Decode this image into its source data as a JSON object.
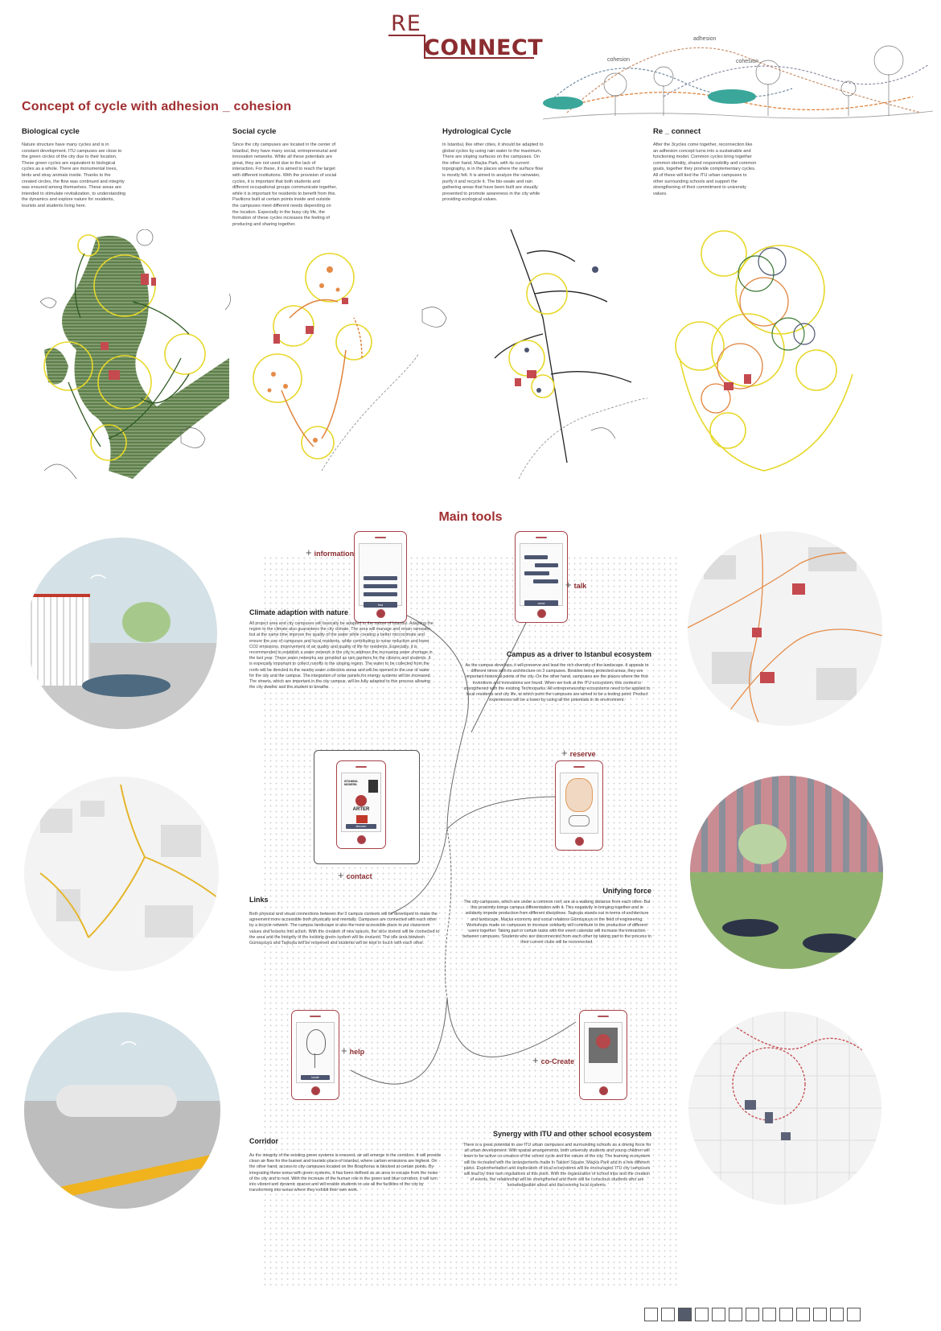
{
  "header": {
    "logo_re": "RE",
    "logo_connect": "CONNECT",
    "diagram_labels": {
      "adhesion": "adhesion",
      "cohesion_left": "cohesion",
      "cohesion_right": "cohesion"
    }
  },
  "concept": {
    "title": "Concept of cycle with adhesion _ cohesion",
    "columns": [
      {
        "title": "Biological cycle",
        "text": "Nature structure have many cycles and is in constant development. ITU campuses are close to the green circles of the city due to their location. These green cycles are equivalent to biological cycles as a whole. There are monumental trees, birds and stray animals inside. Thanks to the created circles, the flow was continued and integrity was ensured among themselves. These areas are intended to stimulate revitalization, to understanding the dynamics and explore nature for residents, tourists and students living here."
      },
      {
        "title": "Social cycle",
        "text": "Since the city campuses are located in the center of Istanbul, they have many social, entrepreneurial and innovation networks. While all these potentials are great, they are not used due to the lack of interaction. For these, it is aimed to reach the target with different institutions. With the provision of social cycles, it is important that both students and different occupational groups communicate together, while it is important for residents to benefit from this. Pavilions built at certain points inside and outside the campuses meet different needs depending on the location. Especially in the busy city life, the formation of these cycles increases the feeling of producing and sharing together."
      },
      {
        "title": "Hydrological Cycle",
        "text": "In Istanbul, like other cities, it should be adapted to global cycles by using rain water to the maximum. There are sloping surfaces on the campuses. On the other hand, Maçka Park, with its current topography, is in the places where the surface flow is mostly felt. It is aimed to analyze the rainwater, purify it and recycle it. The bio-swale and rain gathering areas that have been built are visually presented to promote awareness in the city while providing ecological values."
      },
      {
        "title": "Re _ connect",
        "text": "After the 3cycles come together, reconnection like an adhesion concept turns into a sustainable and functioning model. Common cycles bring together common identity, shared responsibility and common goals, together they provide complementary cycles. All of these will tied the ITU urban campuses to other surrounding schools and support the strengthening of their commitment to university values."
      }
    ]
  },
  "tools": {
    "title": "Main tools",
    "sections": [
      {
        "title": "Climate adaption with nature",
        "text": "All project area and city campuses will basically be adapted to the nature of Istanbul. Adapting the region to the climate also guarantees the city climate. The area will manage and retain rainwater, but at the same time improve the quality of the water while creating a better microclimate and ensure the use of campuses and local residents, while contributing to noise reduction and lower CO2 emissions, improvement of air quality and quality of life for residents. Especially, it is recommended to establish a water network in the city to address the increasing water shortage in the last year. These water networks are provided as rain gardens for the citizens and students. It is especially important to collect runoffs in the sloping region. The water to be collected from the roofs will be directed to the nearby water collection areas and will be opened to the use of water for the city and the campus. The integration of solar panels for energy systems will be increased. The streets, which are important in the city campus, will be fully adapted to this process allowing the city dweller and the student to breathe."
      },
      {
        "title": "Campus as a driver to Istanbul ecosystem",
        "text": "As the campus develops, it will preserve and lead the rich diversity of the landscape. It appeals to different times with its architecture on 3 campuses. Besides being protected areas, they are important historical points of the city. On the other hand, campuses are the places where the first inventions and innovations are found. When we look at the ITU ecosystem, this context is strengthened with the existing Technoparks. All entrepreneurship ecosystems need to be applied to local residents and city life, at which point the campuses are aimed to be a testing point. Product experiences will be a lower by using all the potentials in its environment."
      },
      {
        "title": "Links",
        "text": "Both physical and visual connections between the 3 campus contexts will be developed to make the agreement more accessible both physically and mentally. Campuses are connected with each other by a bicycle network. The campus landscape is also the most accessible place to put classroom values and lessons into action. With the creation of new spaces, the slice streets will be connected to the area and the integrity of the existing green system will be ensured. The idle area between Gümüşsuyu and Taşkışla will be reopened and students will be kept in touch with each other."
      },
      {
        "title": "Unifying force",
        "text": "The city campuses, which are under a common roof, are at a walking distance from each other. But this proximity brings campus differentiation with it. This negativity in bringing together and in solidarity impede production from different disciplines. Taşkışla stands out in terms of architecture and landscape, Maçka economy and social relations Gümüşsuyu in the field of engineering. Workshops made on campuses to increase solidarity will contribute to the production of different users together. Taking part in certain tasks with the event calendar will increase the interaction between campuses. Students who are disconnected from each other by taking part in the process in their current clubs will be reconnected."
      },
      {
        "title": "Corridor",
        "text": "As the integrity of the existing green systems is ensured, air will emerge in the corridors. It will provide clean air flow for the busiest and touristic place of Istanbul, where carbon emissions are highest. On the other hand, access to city campuses located on the Bosphorus is blocked at certain points. By integrating these areas with green systems, it has been defined as an area to escape from the noise of the city and to rest. With the increase of the human role in the green and blue corridors, it will turn into vibrant and dynamic spaces and will enable students to use all the facilities of the city by transforming into areas where they exhibit their own work."
      },
      {
        "title": "Synergy with ITU and other school ecosystem",
        "text": "There is a great potential to use ITU urban campuses and surrounding schools as a driving force for all urban development. With spatial arrangements, both university students and young children will learn to be active co-creators of the school cycle and the nature of the city. The learning ecosystem will be recreated with the arrangements made in Taksim Square, Maçka Park and in a few different parks. Experimentation and exploration of local ecosystems will be encouraged. ITU city campuses will lead by their own regulations at this point. With the organization of school trips and the creation of events, the relationship will be strengthened and there will be conscious students who are knowledgeable about and discovering local systems."
      }
    ],
    "tags": {
      "information": "information",
      "talk": "talk",
      "contact": "contact",
      "reserve": "reserve",
      "help": "help",
      "cocreate": "co-Create"
    },
    "phone_texts": {
      "info_btn": "find",
      "talk_btn": "send",
      "contact_logo1": "ISTANBUL MODERN",
      "contact_logo2": "ARTER",
      "contact_btn": "discover",
      "help_btn": "locate"
    }
  },
  "pager": {
    "count": 13,
    "active": 3
  }
}
